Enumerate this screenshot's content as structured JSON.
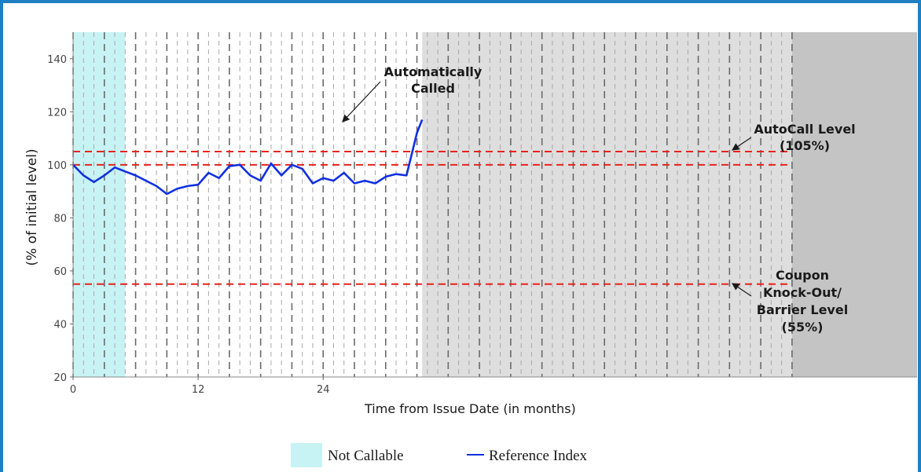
{
  "chart_data": {
    "type": "line",
    "xlabel": "Time from Issue Date (in months)",
    "ylabel": "(% of initial level)",
    "xlim": [
      0,
      69
    ],
    "ylim": [
      20,
      150
    ],
    "x_ticks": [
      0,
      12,
      24
    ],
    "y_ticks": [
      20,
      40,
      60,
      80,
      100,
      120,
      140
    ],
    "colors": {
      "line": "#1030e0",
      "levels": "#e8231c",
      "not_callable": "#c8f3f5",
      "after_call": "#dedede",
      "after_maturity": "#c4c4c4"
    },
    "regions": [
      {
        "kind": "not_callable",
        "x_start": 0,
        "x_end": 5
      },
      {
        "kind": "after_call",
        "x_start": 33.5,
        "x_end": 69
      },
      {
        "kind": "after_maturity",
        "x_start": 69,
        "x_end": 81
      }
    ],
    "levels": [
      100,
      105,
      55
    ],
    "series": [
      {
        "name": "Reference Index",
        "x": [
          0,
          1,
          2,
          3,
          4,
          5,
          6,
          7,
          8,
          9,
          10,
          11,
          12,
          13,
          14,
          15,
          16,
          17,
          18,
          19,
          20,
          21,
          22,
          23,
          24,
          25,
          26,
          27,
          28,
          29,
          30,
          31,
          32,
          33,
          33.5
        ],
        "values": [
          100,
          96,
          93.5,
          96,
          99,
          97.5,
          96,
          94,
          92,
          89,
          91,
          92,
          92.5,
          97,
          95,
          99.5,
          100,
          96,
          94,
          100.5,
          96,
          100,
          98.5,
          93,
          95,
          94,
          97,
          93,
          94,
          93,
          95.5,
          96.5,
          96,
          112,
          117
        ]
      }
    ],
    "annotations": {
      "auto_called": [
        "Automatically",
        "Called"
      ],
      "autocall_level": [
        "AutoCall Level",
        "(105%)"
      ],
      "barrier_level": [
        "Coupon",
        "Knock-Out/",
        "Barrier Level",
        "(55%)"
      ]
    },
    "legend": {
      "position": "bottom-center",
      "items": [
        {
          "label": "Not Callable",
          "kind": "swatch"
        },
        {
          "label": "Reference Index",
          "kind": "line"
        }
      ]
    }
  }
}
